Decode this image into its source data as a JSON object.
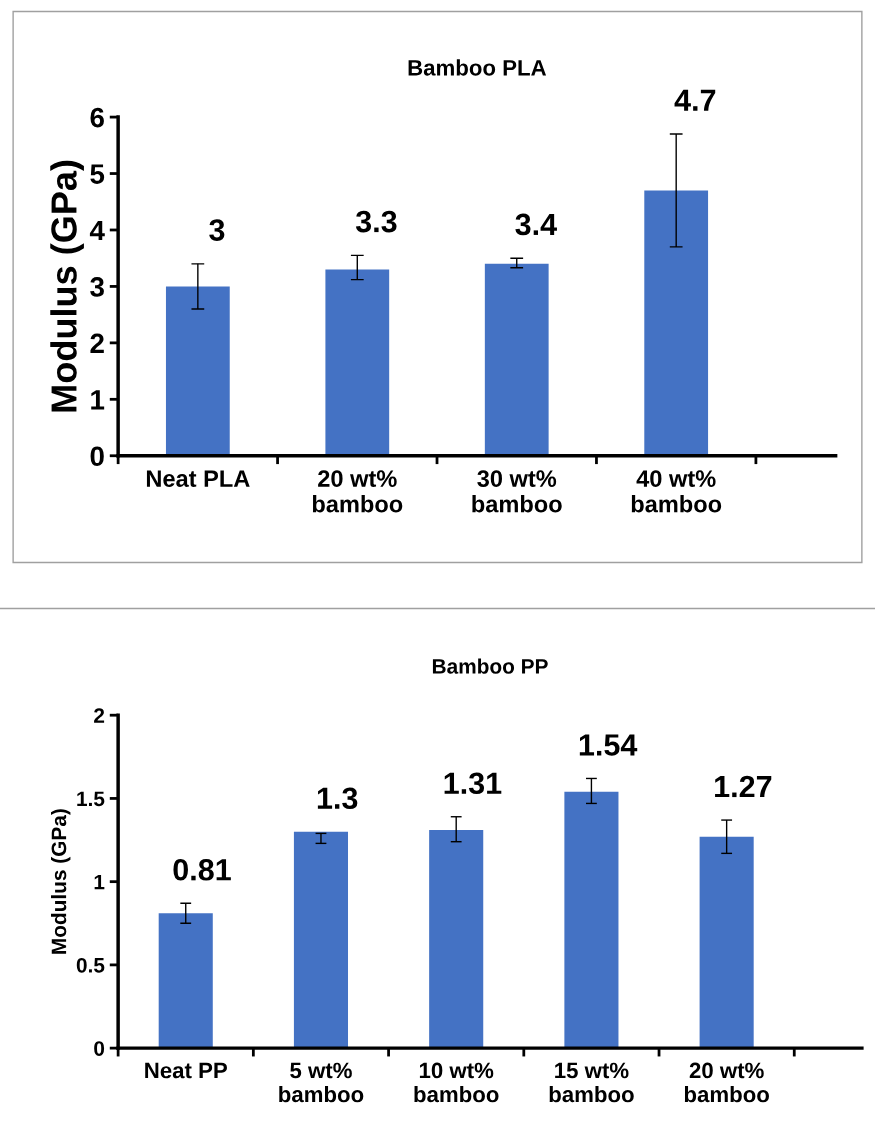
{
  "chart_data": [
    {
      "type": "bar",
      "title": "Bamboo PLA",
      "ylabel": "Modulus (GPa)",
      "categories": [
        "Neat PLA",
        "20 wt%\nbamboo",
        "30 wt%\nbamboo",
        "40 wt%\nbamboo"
      ],
      "values": [
        3,
        3.3,
        3.4,
        4.7
      ],
      "color": "#4472c4",
      "errors": [
        0.4,
        [
          3.12,
          3.55
        ],
        [
          3.33,
          3.5
        ],
        1.0
      ],
      "ylim": [
        0,
        6
      ],
      "yticks": [
        0,
        1,
        2,
        3,
        4,
        5,
        6
      ],
      "data_labels": true,
      "grid": false,
      "legend": false
    },
    {
      "type": "bar",
      "title": "Bamboo PP",
      "ylabel": "Modulus (GPa)",
      "categories": [
        "Neat PP",
        "5 wt%\nbamboo",
        "10 wt%\nbamboo",
        "15 wt%\nbamboo",
        "20 wt%\nbamboo"
      ],
      "values": [
        0.81,
        1.3,
        1.31,
        1.54,
        1.27
      ],
      "color": "#4472c4",
      "errors": [
        [
          0.75,
          0.87
        ],
        [
          1.23,
          1.29
        ],
        [
          1.24,
          1.39
        ],
        [
          1.47,
          1.62
        ],
        [
          1.17,
          1.37
        ]
      ],
      "ylim": [
        0,
        2
      ],
      "yticks": [
        0,
        0.5,
        1,
        1.5,
        2
      ],
      "data_labels": true,
      "grid": false,
      "legend": false
    }
  ]
}
